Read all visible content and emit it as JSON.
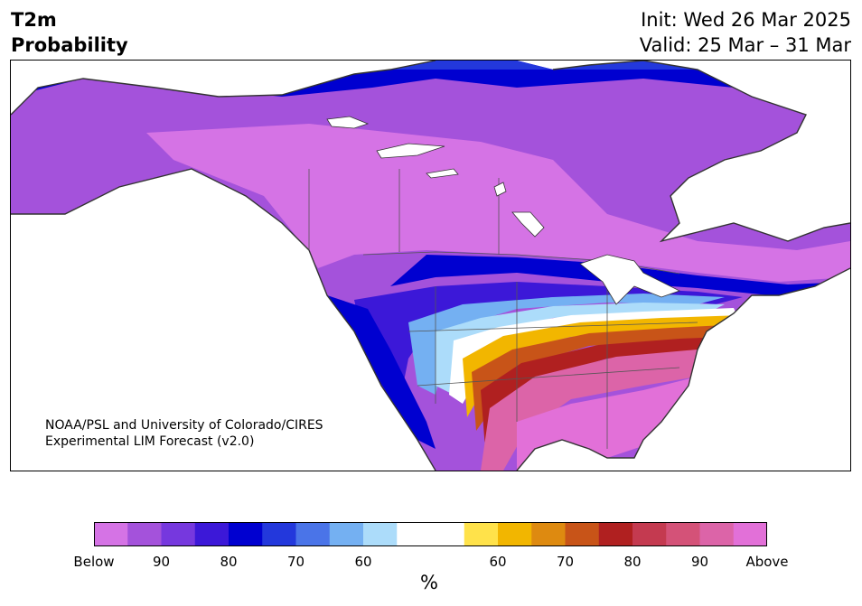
{
  "title": {
    "variable": "T2m",
    "product": "Probability"
  },
  "dates": {
    "init": "Init: Wed 26 Mar 2025",
    "valid": "Valid: 25 Mar – 31 Mar"
  },
  "credit": {
    "line1": "NOAA/PSL and University of Colorado/CIRES",
    "line2": "Experimental LIM Forecast (v2.0)"
  },
  "colorbar": {
    "unit": "%",
    "colors": [
      "#d573e5",
      "#a452db",
      "#7638de",
      "#3c18d8",
      "#0000d0",
      "#2338dc",
      "#4a74e8",
      "#74b0f2",
      "#acdcfa",
      "#ffffff",
      "#ffffff",
      "#ffe24a",
      "#f2b600",
      "#de8a10",
      "#c85418",
      "#b02020",
      "#c43a50",
      "#d45278",
      "#dc64a8",
      "#e270d8"
    ],
    "tick_labels": [
      "Below",
      "90",
      "80",
      "70",
      "60",
      "60",
      "70",
      "80",
      "90",
      "Above"
    ]
  }
}
